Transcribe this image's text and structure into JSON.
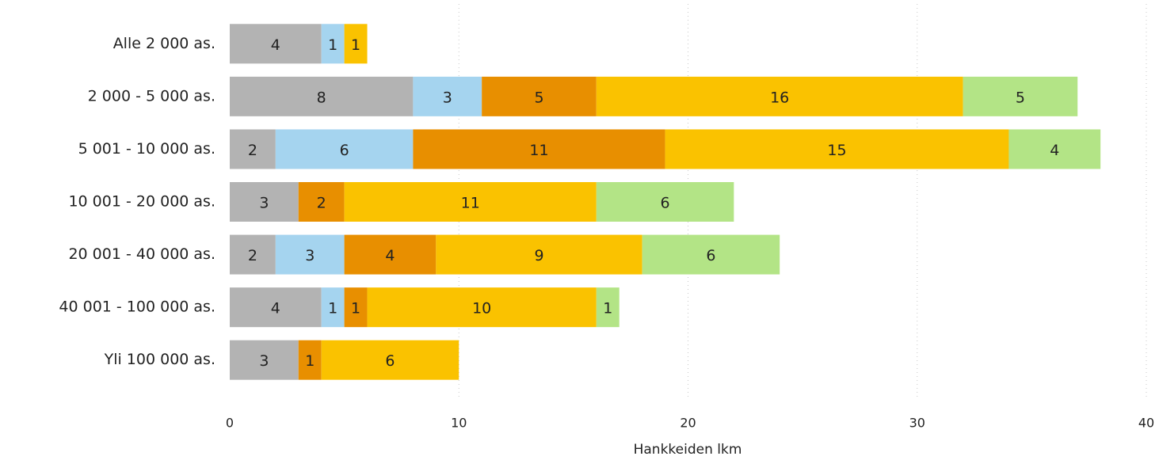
{
  "chart_data": {
    "type": "bar",
    "orientation": "horizontal",
    "stacked": true,
    "x_label": "Hankkeiden lkm",
    "categories": [
      "Alle 2 000 as.",
      "2 000 - 5 000 as.",
      "5 001 - 10 000 as.",
      "10 001 - 20 000 as.",
      "20 001 - 40 000 as.",
      "40 001 - 100 000 as.",
      "Yli 100 000 as."
    ],
    "series": [
      {
        "color": "#b3b3b3",
        "values": [
          4,
          8,
          2,
          3,
          2,
          4,
          3
        ]
      },
      {
        "color": "#a5d4ef",
        "values": [
          1,
          3,
          6,
          null,
          3,
          1,
          null
        ]
      },
      {
        "color": "#e88f00",
        "values": [
          null,
          5,
          11,
          2,
          4,
          1,
          1
        ]
      },
      {
        "color": "#fac200",
        "values": [
          1,
          16,
          15,
          11,
          9,
          10,
          6
        ]
      },
      {
        "color": "#b3e486",
        "values": [
          null,
          5,
          4,
          6,
          6,
          1,
          null
        ]
      }
    ],
    "xlim": [
      0,
      40
    ],
    "xticks": [
      0,
      10,
      20,
      30,
      40
    ],
    "grid": true
  }
}
